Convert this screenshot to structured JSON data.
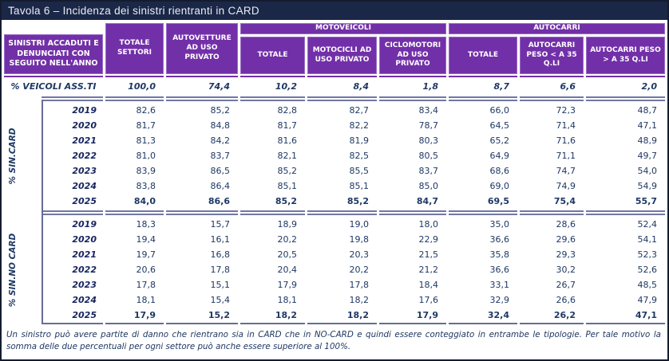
{
  "title": "Tavola 6 – Incidenza dei sinistri rientranti in CARD",
  "colors": {
    "title_bar_navy": "#1b2747",
    "header_purple": "#7230a8",
    "text_navy": "#1f3864",
    "separator_slate": "#7177a3"
  },
  "header": {
    "row_label": "SINISTRI ACCADUTI E DENUNCIATI CON SEGUITO NELL'ANNO",
    "totale_settori": "TOTALE SETTORI",
    "autovetture": "AUTOVETTURE AD USO PRIVATO",
    "group_motoveicoli": "MOTOVEICOLI",
    "moto_totale": "TOTALE",
    "moto_motocicli": "MOTOCICLI AD USO PRIVATO",
    "moto_ciclomotori": "CICLOMOTORI AD USO PRIVATO",
    "group_autocarri": "AUTOCARRI",
    "autocarri_totale": "TOTALE",
    "autocarri_lt35": "AUTOCARRI PESO < A 35 Q.LI",
    "autocarri_gt35": "AUTOCARRI PESO > A 35 Q.LI"
  },
  "veicoli_assicurati": {
    "label": "% VEICOLI ASS.TI",
    "values": [
      "100,0",
      "74,4",
      "10,2",
      "8,4",
      "1,8",
      "8,7",
      "6,6",
      "2,0"
    ]
  },
  "sections": [
    {
      "label": "% SIN.CARD",
      "rows": [
        {
          "year": "2019",
          "values": [
            "82,6",
            "85,2",
            "82,8",
            "82,7",
            "83,4",
            "66,0",
            "72,3",
            "48,7"
          ]
        },
        {
          "year": "2020",
          "values": [
            "81,7",
            "84,8",
            "81,7",
            "82,2",
            "78,7",
            "64,5",
            "71,4",
            "47,1"
          ]
        },
        {
          "year": "2021",
          "values": [
            "81,3",
            "84,2",
            "81,6",
            "81,9",
            "80,3",
            "65,2",
            "71,6",
            "48,9"
          ]
        },
        {
          "year": "2022",
          "values": [
            "81,0",
            "83,7",
            "82,1",
            "82,5",
            "80,5",
            "64,9",
            "71,1",
            "49,7"
          ]
        },
        {
          "year": "2023",
          "values": [
            "83,9",
            "86,5",
            "85,2",
            "85,5",
            "83,7",
            "68,6",
            "74,7",
            "54,0"
          ]
        },
        {
          "year": "2024",
          "values": [
            "83,8",
            "86,4",
            "85,1",
            "85,1",
            "85,0",
            "69,0",
            "74,9",
            "54,9"
          ]
        },
        {
          "year": "2025",
          "values": [
            "84,0",
            "86,6",
            "85,2",
            "85,2",
            "84,7",
            "69,5",
            "75,4",
            "55,7"
          ]
        }
      ]
    },
    {
      "label": "% SIN.NO CARD",
      "rows": [
        {
          "year": "2019",
          "values": [
            "18,3",
            "15,7",
            "18,9",
            "19,0",
            "18,0",
            "35,0",
            "28,6",
            "52,4"
          ]
        },
        {
          "year": "2020",
          "values": [
            "19,4",
            "16,1",
            "20,2",
            "19,8",
            "22,9",
            "36,6",
            "29,6",
            "54,1"
          ]
        },
        {
          "year": "2021",
          "values": [
            "19,7",
            "16,8",
            "20,5",
            "20,3",
            "21,5",
            "35,8",
            "29,3",
            "52,3"
          ]
        },
        {
          "year": "2022",
          "values": [
            "20,6",
            "17,8",
            "20,4",
            "20,2",
            "21,2",
            "36,6",
            "30,2",
            "52,6"
          ]
        },
        {
          "year": "2023",
          "values": [
            "17,8",
            "15,1",
            "17,9",
            "17,8",
            "18,4",
            "33,1",
            "26,7",
            "48,5"
          ]
        },
        {
          "year": "2024",
          "values": [
            "18,1",
            "15,4",
            "18,1",
            "18,2",
            "17,6",
            "32,9",
            "26,6",
            "47,9"
          ]
        },
        {
          "year": "2025",
          "values": [
            "17,9",
            "15,2",
            "18,2",
            "18,2",
            "17,9",
            "32,4",
            "26,2",
            "47,1"
          ]
        }
      ]
    }
  ],
  "footnote": "Un sinistro può avere partite di danno che rientrano sia in CARD che in NO-CARD e quindi essere conteggiato in entrambe le tipologie. Per tale motivo la somma delle due percentuali per ogni settore può anche essere superiore al 100%."
}
